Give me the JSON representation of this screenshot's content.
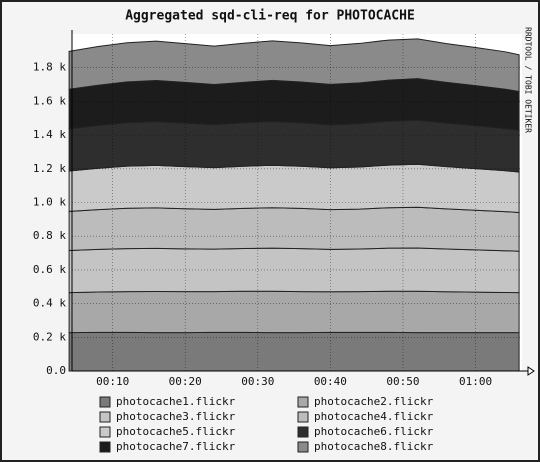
{
  "chart_data": {
    "type": "stacked-area",
    "title": "Aggregated sqd-cli-req for PHOTOCACHE",
    "side_label": "RRDTOOL / TOBI OETIKER",
    "x": [
      4,
      8,
      12,
      16,
      20,
      24,
      28,
      32,
      36,
      40,
      44,
      48,
      52,
      56,
      60,
      64,
      66
    ],
    "xlim": [
      4.4,
      66.4
    ],
    "xticks": [
      {
        "value": 10,
        "label": "00:10"
      },
      {
        "value": 20,
        "label": "00:20"
      },
      {
        "value": 30,
        "label": "00:30"
      },
      {
        "value": 40,
        "label": "00:40"
      },
      {
        "value": 50,
        "label": "00:50"
      },
      {
        "value": 60,
        "label": "01:00"
      }
    ],
    "ylim": [
      0,
      2000
    ],
    "yticks": [
      {
        "value": 0,
        "label": "0.0"
      },
      {
        "value": 200,
        "label": "0.2 k"
      },
      {
        "value": 400,
        "label": "0.4 k"
      },
      {
        "value": 600,
        "label": "0.6 k"
      },
      {
        "value": 800,
        "label": "0.8 k"
      },
      {
        "value": 1000,
        "label": "1.0 k"
      },
      {
        "value": 1200,
        "label": "1.2 k"
      },
      {
        "value": 1400,
        "label": "1.4 k"
      },
      {
        "value": 1600,
        "label": "1.6 k"
      },
      {
        "value": 1800,
        "label": "1.8 k"
      }
    ],
    "grid": true,
    "series": [
      {
        "name": "photocache1.flickr",
        "color": "#7a7a7a",
        "values": [
          228,
          229,
          229,
          228,
          228,
          229,
          229,
          228,
          228,
          229,
          229,
          229,
          228,
          228,
          228,
          228,
          228
        ]
      },
      {
        "name": "photocache2.flickr",
        "color": "#a8a8a8",
        "values": [
          237,
          240,
          242,
          244,
          243,
          242,
          244,
          245,
          243,
          241,
          242,
          244,
          245,
          242,
          240,
          238,
          237
        ]
      },
      {
        "name": "photocache3.flickr",
        "color": "#c4c4c4",
        "values": [
          250,
          253,
          255,
          256,
          254,
          252,
          254,
          256,
          255,
          252,
          253,
          256,
          257,
          254,
          251,
          248,
          246
        ]
      },
      {
        "name": "photocache4.flickr",
        "color": "#bcbcbc",
        "values": [
          232,
          236,
          240,
          240,
          238,
          236,
          238,
          240,
          239,
          236,
          237,
          240,
          242,
          238,
          235,
          232,
          230
        ]
      },
      {
        "name": "photocache5.flickr",
        "color": "#cacaca",
        "values": [
          240,
          245,
          250,
          252,
          250,
          248,
          250,
          252,
          250,
          248,
          250,
          253,
          255,
          251,
          247,
          243,
          240
        ]
      },
      {
        "name": "photocache6.flickr",
        "color": "#2e2e2e",
        "values": [
          250,
          255,
          258,
          260,
          258,
          255,
          258,
          260,
          258,
          255,
          257,
          260,
          262,
          258,
          255,
          250,
          248
        ]
      },
      {
        "name": "photocache7.flickr",
        "color": "#1c1c1c",
        "values": [
          235,
          238,
          242,
          244,
          242,
          238,
          240,
          244,
          242,
          240,
          242,
          244,
          246,
          242,
          238,
          234,
          230
        ]
      },
      {
        "name": "photocache8.flickr",
        "color": "#8a8a8a",
        "values": [
          225,
          230,
          232,
          234,
          230,
          228,
          232,
          234,
          232,
          230,
          234,
          238,
          236,
          230,
          226,
          222,
          218
        ]
      }
    ]
  }
}
